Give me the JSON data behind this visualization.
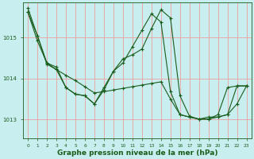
{
  "background_color": "#c8eef0",
  "plot_bg_color": "#c8eef0",
  "grid_color": "#f0a0a0",
  "line_color": "#1a5c1a",
  "title": "Graphe pression niveau de la mer (hPa)",
  "title_fontsize": 6.5,
  "xlim": [
    -0.5,
    23.5
  ],
  "ylim": [
    1012.55,
    1015.85
  ],
  "yticks": [
    1013,
    1014,
    1015
  ],
  "xticks": [
    0,
    1,
    2,
    3,
    4,
    5,
    6,
    7,
    8,
    9,
    10,
    11,
    12,
    13,
    14,
    15,
    16,
    17,
    18,
    19,
    20,
    21,
    22,
    23
  ],
  "series1_x": [
    0,
    1,
    2,
    3,
    4,
    5,
    6,
    7,
    8,
    9,
    10,
    11,
    12,
    13,
    14,
    15,
    16,
    17,
    18,
    19,
    20,
    21,
    22,
    23
  ],
  "series1_y": [
    1015.62,
    1015.05,
    1014.35,
    1014.22,
    1014.08,
    1013.95,
    1013.8,
    1013.65,
    1013.68,
    1013.72,
    1013.76,
    1013.8,
    1013.84,
    1013.88,
    1013.92,
    1013.5,
    1013.12,
    1013.06,
    1013.01,
    1013.01,
    1013.06,
    1013.12,
    1013.38,
    1013.82
  ],
  "series2_x": [
    0,
    1,
    2,
    3,
    4,
    5,
    6,
    7,
    8,
    9,
    10,
    11,
    12,
    13,
    14,
    15,
    16,
    17,
    18,
    19,
    20,
    21,
    22,
    23
  ],
  "series2_y": [
    1015.62,
    1014.92,
    1014.38,
    1014.22,
    1013.78,
    1013.62,
    1013.58,
    1013.38,
    1013.78,
    1014.18,
    1014.38,
    1014.78,
    1015.18,
    1015.58,
    1015.38,
    1013.68,
    1013.12,
    1013.06,
    1013.01,
    1013.01,
    1013.12,
    1013.78,
    1013.82,
    1013.82
  ],
  "series3_x": [
    0,
    1,
    2,
    3,
    4,
    5,
    6,
    7,
    8,
    9,
    10,
    11,
    12,
    13,
    14,
    15,
    16,
    17,
    18,
    19,
    20,
    21,
    22,
    23
  ],
  "series3_y": [
    1015.72,
    1015.05,
    1014.38,
    1014.28,
    1013.78,
    1013.62,
    1013.58,
    1013.38,
    1013.72,
    1014.18,
    1014.48,
    1014.58,
    1014.72,
    1015.22,
    1015.68,
    1015.48,
    1013.58,
    1013.08,
    1013.01,
    1013.06,
    1013.06,
    1013.12,
    1013.82,
    1013.82
  ]
}
